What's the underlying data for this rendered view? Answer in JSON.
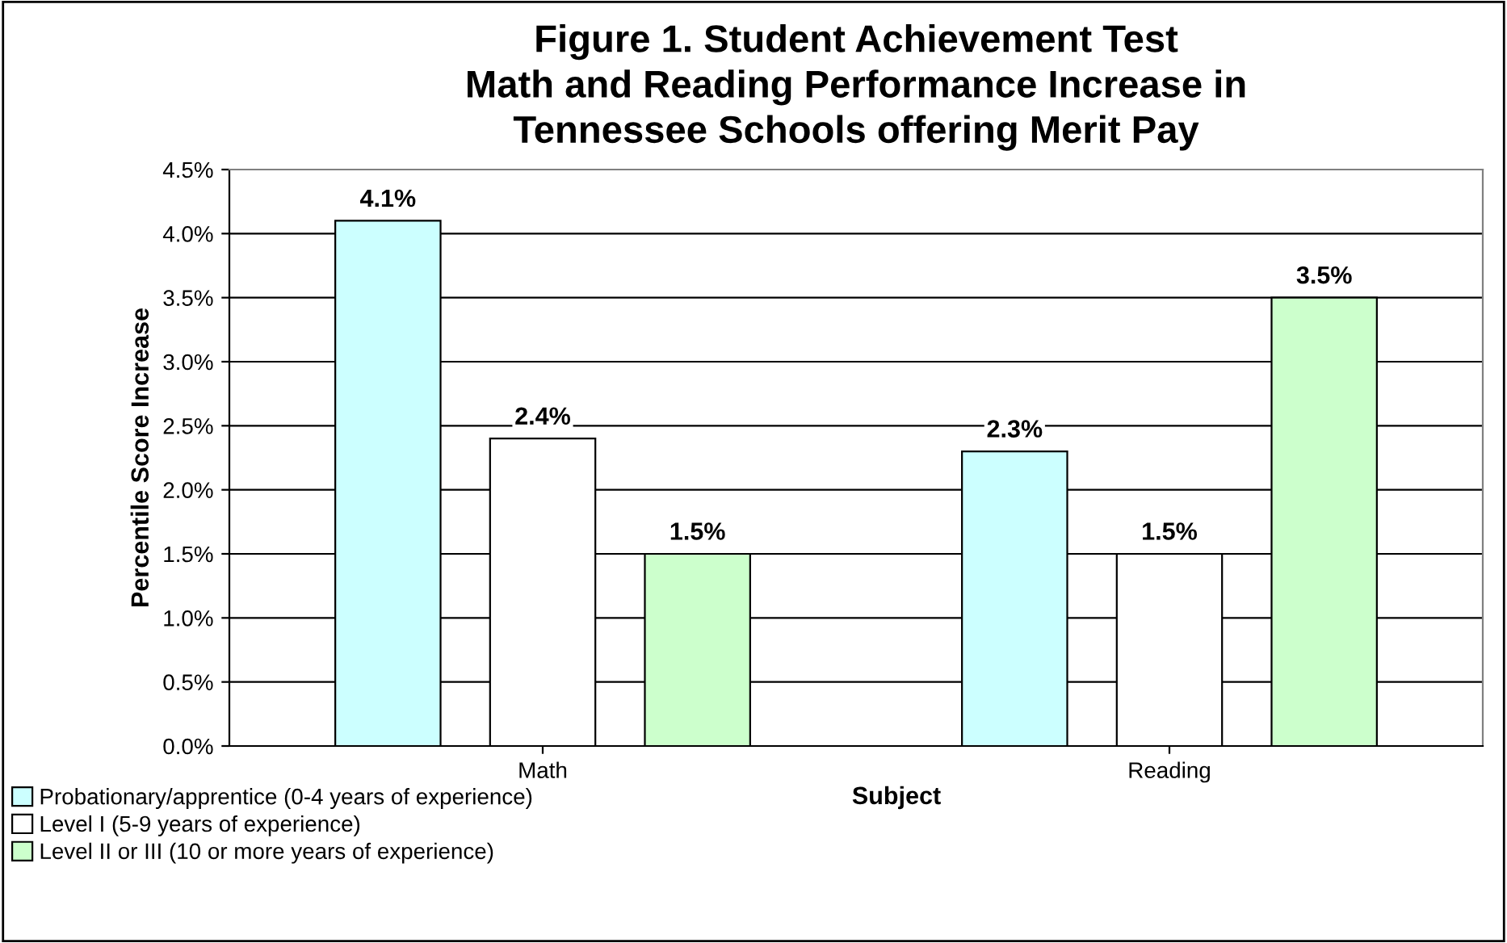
{
  "chart_data": {
    "type": "bar",
    "title": "Figure 1. Student Achievement Test\nMath and Reading Performance Increase in\nTennessee Schools offering Merit Pay",
    "xlabel": "Subject",
    "ylabel": "Percentile Score Increase",
    "categories": [
      "Math",
      "Reading"
    ],
    "series": [
      {
        "name": "Probationary/apprentice (0-4 years of experience)",
        "color": "#ccffff",
        "values": [
          4.1,
          2.3
        ],
        "value_labels": [
          "4.1%",
          "2.3%"
        ]
      },
      {
        "name": "Level I (5-9 years of experience)",
        "color": "#ffffff",
        "values": [
          2.4,
          1.5
        ],
        "value_labels": [
          "2.4%",
          "1.5%"
        ]
      },
      {
        "name": "Level II or III (10 or more years of experience)",
        "color": "#ccffcc",
        "values": [
          1.5,
          3.5
        ],
        "value_labels": [
          "1.5%",
          "3.5%"
        ]
      }
    ],
    "ylim": [
      0,
      4.5
    ],
    "yticks": [
      {
        "value": 0,
        "label": "0.0%"
      },
      {
        "value": 0.5,
        "label": "0.5%"
      },
      {
        "value": 1,
        "label": "1.0%"
      },
      {
        "value": 1.5,
        "label": "1.5%"
      },
      {
        "value": 2,
        "label": "2.0%"
      },
      {
        "value": 2.5,
        "label": "2.5%"
      },
      {
        "value": 3,
        "label": "3.0%"
      },
      {
        "value": 3.5,
        "label": "3.5%"
      },
      {
        "value": 4,
        "label": "4.0%"
      },
      {
        "value": 4.5,
        "label": "4.5%"
      }
    ],
    "grid": "y",
    "legend": "bottom left"
  }
}
